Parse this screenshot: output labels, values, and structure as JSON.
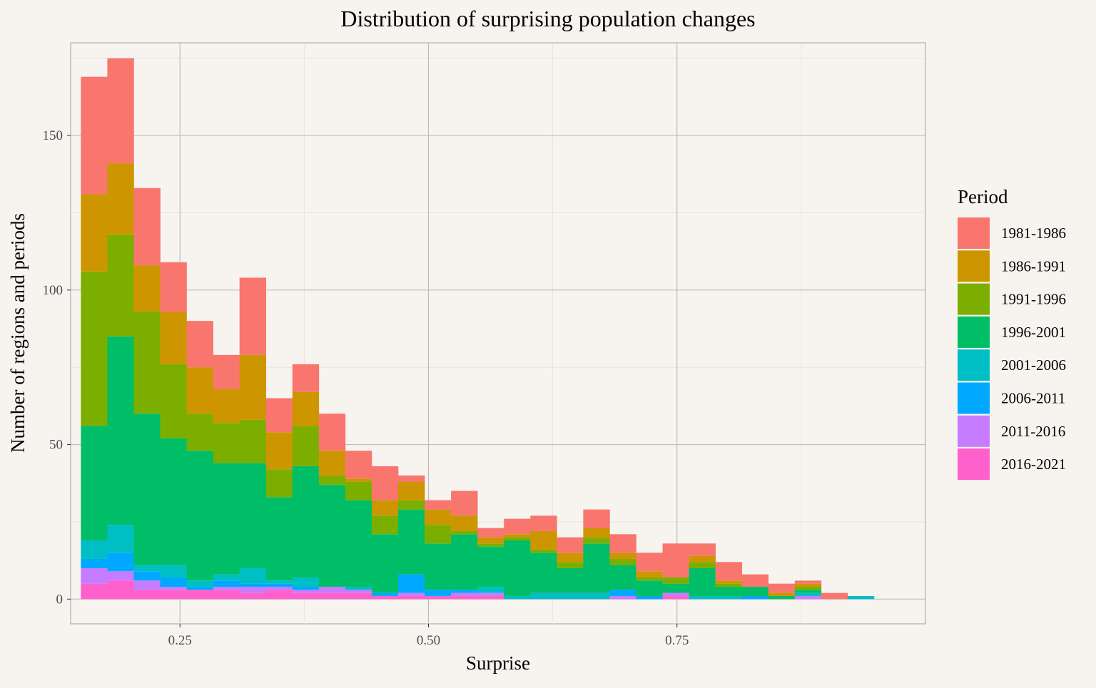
{
  "chart_data": {
    "type": "bar",
    "stacked": true,
    "title": "Distribution of surprising population changes",
    "xlabel": "Surprise",
    "ylabel": "Number of regions and periods",
    "xlim": [
      0.14,
      1.0
    ],
    "ylim": [
      -8,
      180
    ],
    "x_ticks": [
      0.25,
      0.5,
      0.75
    ],
    "x_tick_labels": [
      "0.25",
      "0.50",
      "0.75"
    ],
    "y_ticks": [
      0,
      50,
      100,
      150
    ],
    "y_tick_labels": [
      "0",
      "50",
      "100",
      "150"
    ],
    "grid": true,
    "legend_position": "right",
    "legend_title": "Period",
    "bin_width": 0.02661,
    "x": [
      0.1636,
      0.1902,
      0.2168,
      0.2434,
      0.27,
      0.2966,
      0.3232,
      0.3498,
      0.3764,
      0.403,
      0.4296,
      0.4562,
      0.4828,
      0.5094,
      0.536,
      0.5626,
      0.5892,
      0.6158,
      0.6424,
      0.669,
      0.6956,
      0.7222,
      0.7488,
      0.7754,
      0.802,
      0.8286,
      0.8552,
      0.8818,
      0.9084,
      0.935
    ],
    "series": [
      {
        "name": "1981-1986",
        "color": "#F8766D",
        "values": [
          38,
          34,
          25,
          16,
          15,
          11,
          25,
          11,
          9,
          12,
          9,
          11,
          2,
          3,
          8,
          3,
          5,
          5,
          5,
          6,
          6,
          6,
          11,
          4,
          6,
          4,
          3,
          1,
          2,
          0
        ]
      },
      {
        "name": "1986-1991",
        "color": "#CD9600",
        "values": [
          25,
          23,
          15,
          17,
          15,
          11,
          21,
          12,
          11,
          8,
          1,
          5,
          6,
          5,
          5,
          2,
          1,
          6,
          3,
          3,
          2,
          2,
          0,
          2,
          1,
          0,
          1,
          1,
          0,
          0
        ]
      },
      {
        "name": "1991-1996",
        "color": "#7CAE00",
        "values": [
          50,
          33,
          33,
          24,
          12,
          13,
          14,
          9,
          13,
          3,
          6,
          6,
          3,
          6,
          1,
          1,
          1,
          1,
          2,
          2,
          2,
          1,
          2,
          2,
          1,
          0,
          0,
          1,
          0,
          0
        ]
      },
      {
        "name": "1996-2001",
        "color": "#00BE67",
        "values": [
          37,
          61,
          49,
          41,
          42,
          36,
          34,
          27,
          36,
          33,
          28,
          19,
          21,
          15,
          18,
          13,
          18,
          13,
          8,
          16,
          8,
          5,
          3,
          9,
          3,
          3,
          1,
          1,
          0,
          0
        ]
      },
      {
        "name": "2001-2006",
        "color": "#00BFC4",
        "values": [
          6,
          9,
          2,
          4,
          2,
          2,
          5,
          1,
          3,
          0,
          1,
          0,
          0,
          0,
          0,
          2,
          1,
          2,
          2,
          2,
          0,
          0,
          0,
          1,
          1,
          0,
          0,
          1,
          0,
          1
        ]
      },
      {
        "name": "2006-2011",
        "color": "#00A9FF",
        "values": [
          3,
          6,
          3,
          3,
          1,
          2,
          1,
          1,
          1,
          0,
          0,
          1,
          6,
          2,
          1,
          0,
          0,
          0,
          0,
          0,
          2,
          1,
          0,
          0,
          0,
          1,
          0,
          0,
          0,
          0
        ]
      },
      {
        "name": "2011-2016",
        "color": "#C77CFF",
        "values": [
          5,
          3,
          3,
          1,
          0,
          1,
          2,
          1,
          1,
          2,
          1,
          0,
          1,
          0,
          1,
          1,
          0,
          0,
          0,
          0,
          1,
          0,
          1,
          0,
          0,
          0,
          0,
          1,
          0,
          0
        ]
      },
      {
        "name": "2016-2021",
        "color": "#FF61CC",
        "values": [
          5,
          6,
          3,
          3,
          3,
          3,
          2,
          3,
          2,
          2,
          2,
          1,
          1,
          1,
          1,
          1,
          0,
          0,
          0,
          0,
          0,
          0,
          1,
          0,
          0,
          0,
          0,
          0,
          0,
          0
        ]
      }
    ]
  }
}
